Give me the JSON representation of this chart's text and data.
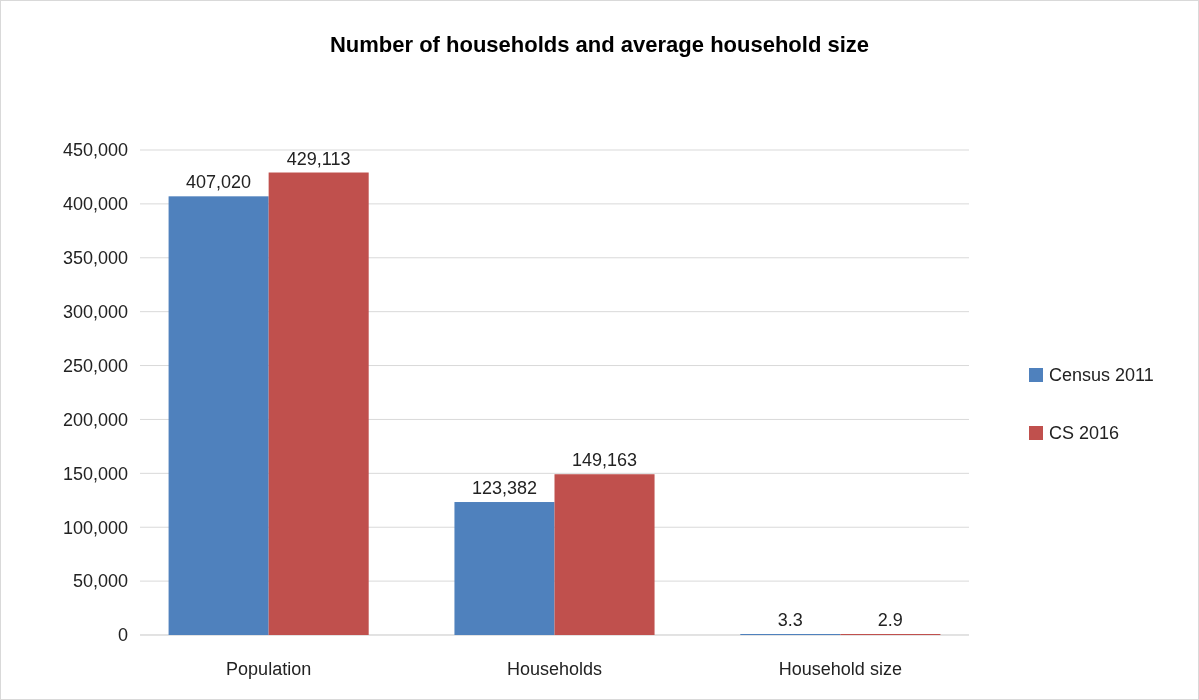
{
  "chart_data": {
    "type": "bar",
    "title": "Number of households and average household size",
    "categories": [
      "Population",
      "Households",
      "Household size"
    ],
    "series": [
      {
        "name": "Census 2011",
        "color": "#4f81bd",
        "values": [
          407020,
          123382,
          3.3
        ],
        "value_labels": [
          "407,020",
          "123,382",
          "3.3"
        ]
      },
      {
        "name": "CS 2016",
        "color": "#c0504d",
        "values": [
          429113,
          149163,
          2.9
        ],
        "value_labels": [
          "429,113",
          "149,163",
          "2.9"
        ]
      }
    ],
    "ylim": [
      0,
      450000
    ],
    "yticks": [
      {
        "value": 0,
        "label": "0"
      },
      {
        "value": 50000,
        "label": "50,000"
      },
      {
        "value": 100000,
        "label": "100,000"
      },
      {
        "value": 150000,
        "label": "150,000"
      },
      {
        "value": 200000,
        "label": "200,000"
      },
      {
        "value": 250000,
        "label": "250,000"
      },
      {
        "value": 300000,
        "label": "300,000"
      },
      {
        "value": 350000,
        "label": "350,000"
      },
      {
        "value": 400000,
        "label": "400,000"
      },
      {
        "value": 450000,
        "label": "450,000"
      }
    ],
    "grid": "y",
    "legend": "right"
  }
}
